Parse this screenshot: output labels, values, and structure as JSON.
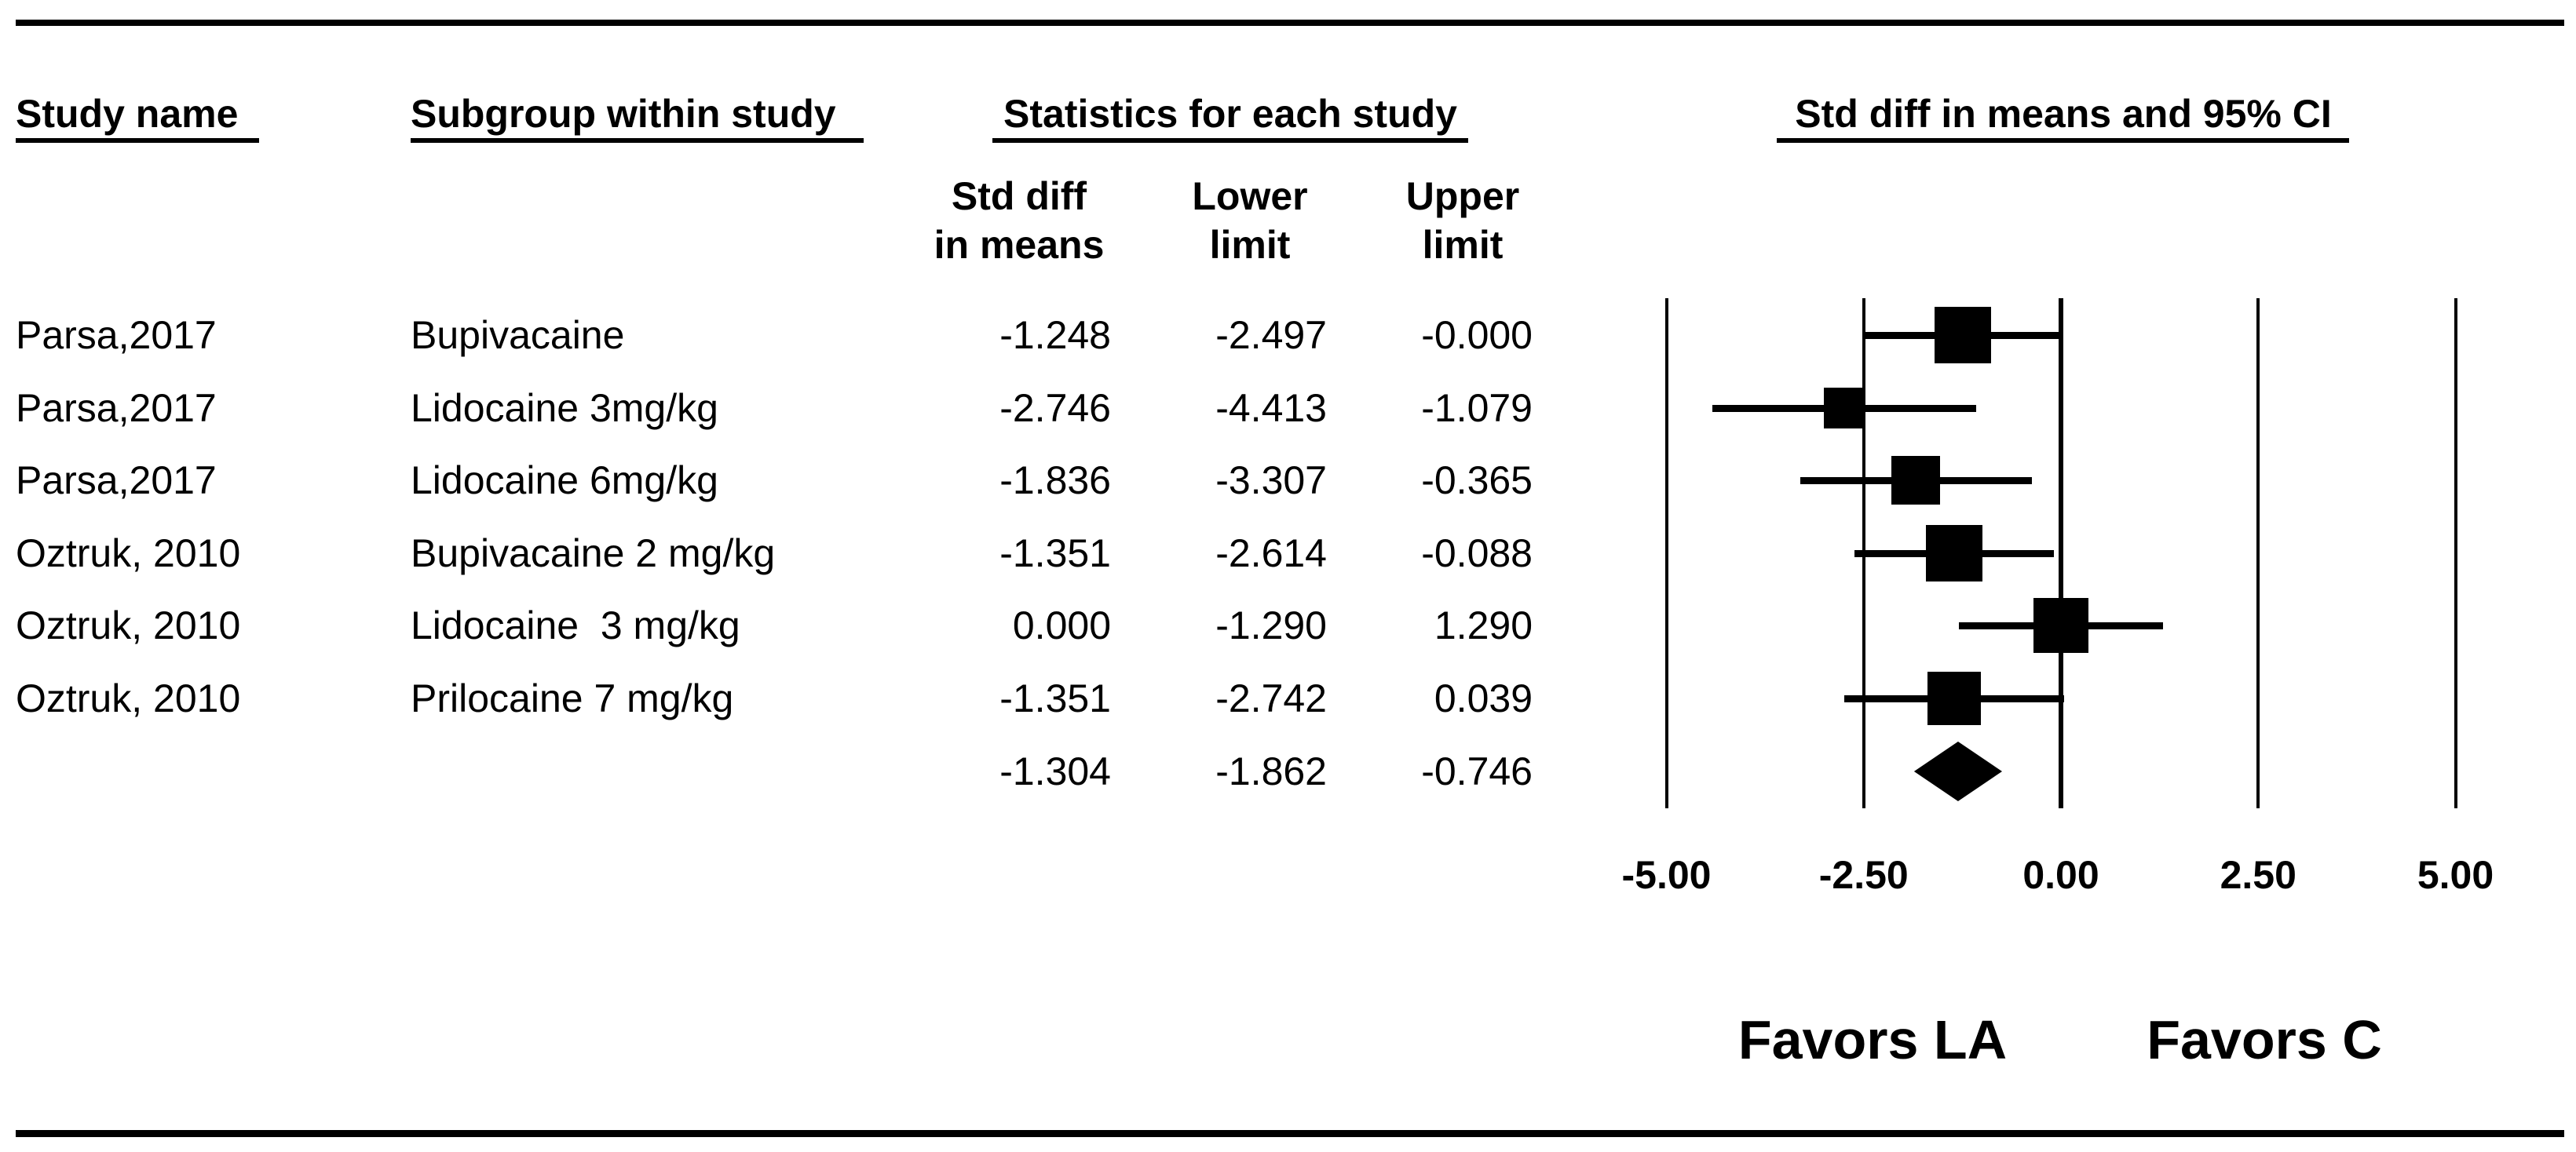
{
  "headers": {
    "study_name": "Study name",
    "subgroup": "Subgroup within study",
    "statistics": "Statistics for each study",
    "ci": "Std diff in means and 95% CI"
  },
  "stat_headers": {
    "col1_line1": "Std diff",
    "col1_line2": "in means",
    "col2_line1": "Lower",
    "col2_line2": "limit",
    "col3_line1": "Upper",
    "col3_line2": "limit"
  },
  "chart_data": {
    "type": "forest",
    "title": "Std diff in means and 95% CI",
    "xlim": [
      -5,
      5
    ],
    "reference_line": 0,
    "x_ticks": [
      {
        "value": -5,
        "label": "-5.00"
      },
      {
        "value": -2.5,
        "label": "-2.50"
      },
      {
        "value": 0,
        "label": "0.00"
      },
      {
        "value": 2.5,
        "label": "2.50"
      },
      {
        "value": 5,
        "label": "5.00"
      }
    ],
    "studies": [
      {
        "study": "Parsa,2017",
        "subgroup": "Bupivacaine",
        "mean": -1.248,
        "lower": -2.497,
        "upper": -0.0,
        "mean_text": "-1.248",
        "lower_text": "-2.497",
        "upper_text": "-0.000",
        "marker_px": 72
      },
      {
        "study": "Parsa,2017",
        "subgroup": "Lidocaine 3mg/kg",
        "mean": -2.746,
        "lower": -4.413,
        "upper": -1.079,
        "mean_text": "-2.746",
        "lower_text": "-4.413",
        "upper_text": "-1.079",
        "marker_px": 52
      },
      {
        "study": "Parsa,2017",
        "subgroup": "Lidocaine 6mg/kg",
        "mean": -1.836,
        "lower": -3.307,
        "upper": -0.365,
        "mean_text": "-1.836",
        "lower_text": "-3.307",
        "upper_text": "-0.365",
        "marker_px": 62
      },
      {
        "study": "Oztruk, 2010",
        "subgroup": "Bupivacaine 2 mg/kg",
        "mean": -1.351,
        "lower": -2.614,
        "upper": -0.088,
        "mean_text": "-1.351",
        "lower_text": "-2.614",
        "upper_text": "-0.088",
        "marker_px": 72
      },
      {
        "study": "Oztruk, 2010",
        "subgroup": "Lidocaine  3 mg/kg",
        "mean": 0.0,
        "lower": -1.29,
        "upper": 1.29,
        "mean_text": "0.000",
        "lower_text": "-1.290",
        "upper_text": "1.290",
        "marker_px": 70
      },
      {
        "study": "Oztruk, 2010",
        "subgroup": "Prilocaine 7 mg/kg",
        "mean": -1.351,
        "lower": -2.742,
        "upper": 0.039,
        "mean_text": "-1.351",
        "lower_text": "-2.742",
        "upper_text": "0.039",
        "marker_px": 68
      }
    ],
    "summary": {
      "mean": -1.304,
      "lower": -1.862,
      "upper": -0.746,
      "mean_text": "-1.304",
      "lower_text": "-1.862",
      "upper_text": "-0.746"
    },
    "favors": {
      "left": "Favors LA",
      "right": "Favors C"
    },
    "legend_position": "none",
    "grid": true
  }
}
